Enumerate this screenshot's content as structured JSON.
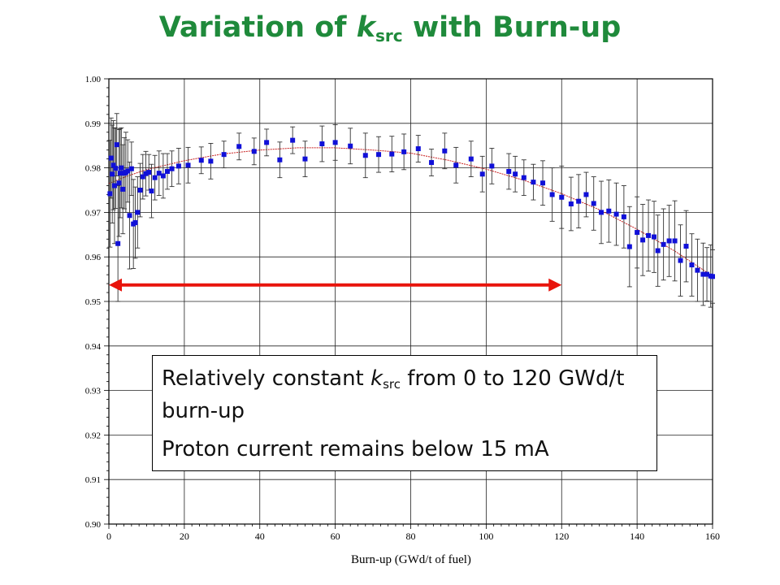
{
  "title": {
    "prefix": "Variation of ",
    "k": "k",
    "sub": "src",
    "suffix": " with Burn-up"
  },
  "callout": {
    "line1_pre": "Relatively constant ",
    "line1_k": "k",
    "line1_sub": "src",
    "line1_post": " from 0 to 120 GWd/t burn-up",
    "line2": "Proton current remains below 15 mA"
  },
  "colors": {
    "title": "#1f8a3b",
    "points": "#1010d8",
    "fit": "#c81e1e",
    "arrow": "#e8140c"
  },
  "chart_data": {
    "type": "scatter",
    "xlabel": "Burn-up (GWd/t of fuel)",
    "ylabel": "",
    "xlim": [
      0,
      160
    ],
    "ylim": [
      0.9,
      1.0
    ],
    "xticks": [
      0,
      20,
      40,
      60,
      80,
      100,
      120,
      140,
      160
    ],
    "yticks": [
      "0.90",
      "0.91",
      "0.92",
      "0.93",
      "0.94",
      "0.95",
      "0.96",
      "0.97",
      "0.98",
      "0.99",
      "1.00"
    ],
    "grid": true,
    "arrow_range": [
      0,
      120
    ],
    "arrow_y": 0.9537,
    "points": [
      {
        "x": 0.3,
        "y": 0.9742,
        "err": 0.012
      },
      {
        "x": 0.6,
        "y": 0.9822,
        "err": 0.009
      },
      {
        "x": 0.9,
        "y": 0.9786,
        "err": 0.011
      },
      {
        "x": 1.2,
        "y": 0.9806,
        "err": 0.01
      },
      {
        "x": 1.5,
        "y": 0.976,
        "err": 0.013
      },
      {
        "x": 1.8,
        "y": 0.9799,
        "err": 0.009
      },
      {
        "x": 2.1,
        "y": 0.9852,
        "err": 0.007
      },
      {
        "x": 2.4,
        "y": 0.963,
        "err": 0.013
      },
      {
        "x": 2.7,
        "y": 0.9766,
        "err": 0.012
      },
      {
        "x": 3.0,
        "y": 0.9788,
        "err": 0.01
      },
      {
        "x": 3.3,
        "y": 0.98,
        "err": 0.009
      },
      {
        "x": 3.7,
        "y": 0.9752,
        "err": 0.01
      },
      {
        "x": 4.1,
        "y": 0.9788,
        "err": 0.008
      },
      {
        "x": 4.5,
        "y": 0.979,
        "err": 0.009
      },
      {
        "x": 5.0,
        "y": 0.9793,
        "err": 0.007
      },
      {
        "x": 5.5,
        "y": 0.9693,
        "err": 0.012
      },
      {
        "x": 6.0,
        "y": 0.9798,
        "err": 0.006
      },
      {
        "x": 6.5,
        "y": 0.9674,
        "err": 0.01
      },
      {
        "x": 7.0,
        "y": 0.9677,
        "err": 0.008
      },
      {
        "x": 7.6,
        "y": 0.97,
        "err": 0.008
      },
      {
        "x": 8.3,
        "y": 0.975,
        "err": 0.006
      },
      {
        "x": 9.0,
        "y": 0.978,
        "err": 0.005
      },
      {
        "x": 9.8,
        "y": 0.9787,
        "err": 0.005
      },
      {
        "x": 10.6,
        "y": 0.979,
        "err": 0.004
      },
      {
        "x": 11.3,
        "y": 0.9748,
        "err": 0.006
      },
      {
        "x": 12.2,
        "y": 0.9778,
        "err": 0.005
      },
      {
        "x": 13.3,
        "y": 0.9788,
        "err": 0.005
      },
      {
        "x": 14.4,
        "y": 0.9782,
        "err": 0.005
      },
      {
        "x": 15.5,
        "y": 0.9792,
        "err": 0.004
      },
      {
        "x": 16.7,
        "y": 0.9798,
        "err": 0.004
      },
      {
        "x": 18.5,
        "y": 0.9804,
        "err": 0.004
      },
      {
        "x": 21.0,
        "y": 0.9806,
        "err": 0.004
      },
      {
        "x": 24.5,
        "y": 0.9817,
        "err": 0.003
      },
      {
        "x": 27.0,
        "y": 0.9815,
        "err": 0.004
      },
      {
        "x": 30.5,
        "y": 0.983,
        "err": 0.003
      },
      {
        "x": 34.5,
        "y": 0.9848,
        "err": 0.003
      },
      {
        "x": 38.5,
        "y": 0.9837,
        "err": 0.003
      },
      {
        "x": 41.8,
        "y": 0.9857,
        "err": 0.003
      },
      {
        "x": 45.3,
        "y": 0.9818,
        "err": 0.004
      },
      {
        "x": 48.7,
        "y": 0.9862,
        "err": 0.003
      },
      {
        "x": 52.0,
        "y": 0.982,
        "err": 0.004
      },
      {
        "x": 56.5,
        "y": 0.9854,
        "err": 0.004
      },
      {
        "x": 60.0,
        "y": 0.9857,
        "err": 0.004
      },
      {
        "x": 64.0,
        "y": 0.9849,
        "err": 0.004
      },
      {
        "x": 68.0,
        "y": 0.9828,
        "err": 0.005
      },
      {
        "x": 71.5,
        "y": 0.983,
        "err": 0.004
      },
      {
        "x": 75.0,
        "y": 0.9831,
        "err": 0.004
      },
      {
        "x": 78.2,
        "y": 0.9836,
        "err": 0.004
      },
      {
        "x": 82.0,
        "y": 0.9843,
        "err": 0.003
      },
      {
        "x": 85.5,
        "y": 0.9812,
        "err": 0.003
      },
      {
        "x": 89.0,
        "y": 0.9838,
        "err": 0.004
      },
      {
        "x": 92.0,
        "y": 0.9806,
        "err": 0.004
      },
      {
        "x": 96.0,
        "y": 0.982,
        "err": 0.004
      },
      {
        "x": 99.0,
        "y": 0.9786,
        "err": 0.004
      },
      {
        "x": 101.5,
        "y": 0.9804,
        "err": 0.004
      },
      {
        "x": 106.0,
        "y": 0.9792,
        "err": 0.004
      },
      {
        "x": 107.7,
        "y": 0.9786,
        "err": 0.004
      },
      {
        "x": 110.0,
        "y": 0.9778,
        "err": 0.004
      },
      {
        "x": 112.5,
        "y": 0.9768,
        "err": 0.004
      },
      {
        "x": 115.0,
        "y": 0.9766,
        "err": 0.005
      },
      {
        "x": 117.5,
        "y": 0.974,
        "err": 0.006
      },
      {
        "x": 120.0,
        "y": 0.9734,
        "err": 0.007
      },
      {
        "x": 122.5,
        "y": 0.9719,
        "err": 0.006
      },
      {
        "x": 124.5,
        "y": 0.9725,
        "err": 0.006
      },
      {
        "x": 126.5,
        "y": 0.974,
        "err": 0.005
      },
      {
        "x": 128.5,
        "y": 0.972,
        "err": 0.006
      },
      {
        "x": 130.5,
        "y": 0.97,
        "err": 0.007
      },
      {
        "x": 132.5,
        "y": 0.9703,
        "err": 0.007
      },
      {
        "x": 134.5,
        "y": 0.9696,
        "err": 0.007
      },
      {
        "x": 136.5,
        "y": 0.969,
        "err": 0.007
      },
      {
        "x": 138.0,
        "y": 0.9623,
        "err": 0.009
      },
      {
        "x": 140.0,
        "y": 0.9655,
        "err": 0.008
      },
      {
        "x": 141.5,
        "y": 0.9638,
        "err": 0.008
      },
      {
        "x": 143.0,
        "y": 0.9648,
        "err": 0.008
      },
      {
        "x": 144.5,
        "y": 0.9645,
        "err": 0.008
      },
      {
        "x": 145.5,
        "y": 0.9614,
        "err": 0.008
      },
      {
        "x": 147.0,
        "y": 0.9628,
        "err": 0.008
      },
      {
        "x": 148.5,
        "y": 0.9636,
        "err": 0.008
      },
      {
        "x": 150.0,
        "y": 0.9636,
        "err": 0.009
      },
      {
        "x": 151.5,
        "y": 0.9592,
        "err": 0.008
      },
      {
        "x": 153.0,
        "y": 0.9624,
        "err": 0.008
      },
      {
        "x": 154.5,
        "y": 0.9582,
        "err": 0.007
      },
      {
        "x": 156.0,
        "y": 0.957,
        "err": 0.007
      },
      {
        "x": 157.5,
        "y": 0.9561,
        "err": 0.007
      },
      {
        "x": 158.5,
        "y": 0.9561,
        "err": 0.006
      },
      {
        "x": 159.5,
        "y": 0.9557,
        "err": 0.007
      },
      {
        "x": 160.0,
        "y": 0.9556,
        "err": 0.006
      }
    ],
    "fit": [
      [
        0,
        0.9765
      ],
      [
        5,
        0.9782
      ],
      [
        10,
        0.9796
      ],
      [
        20,
        0.9816
      ],
      [
        30,
        0.9831
      ],
      [
        40,
        0.984
      ],
      [
        50,
        0.9845
      ],
      [
        60,
        0.9845
      ],
      [
        70,
        0.984
      ],
      [
        80,
        0.9833
      ],
      [
        90,
        0.9817
      ],
      [
        100,
        0.9797
      ],
      [
        110,
        0.9772
      ],
      [
        120,
        0.9742
      ],
      [
        130,
        0.9706
      ],
      [
        140,
        0.9662
      ],
      [
        150,
        0.9613
      ],
      [
        160,
        0.9557
      ]
    ]
  }
}
